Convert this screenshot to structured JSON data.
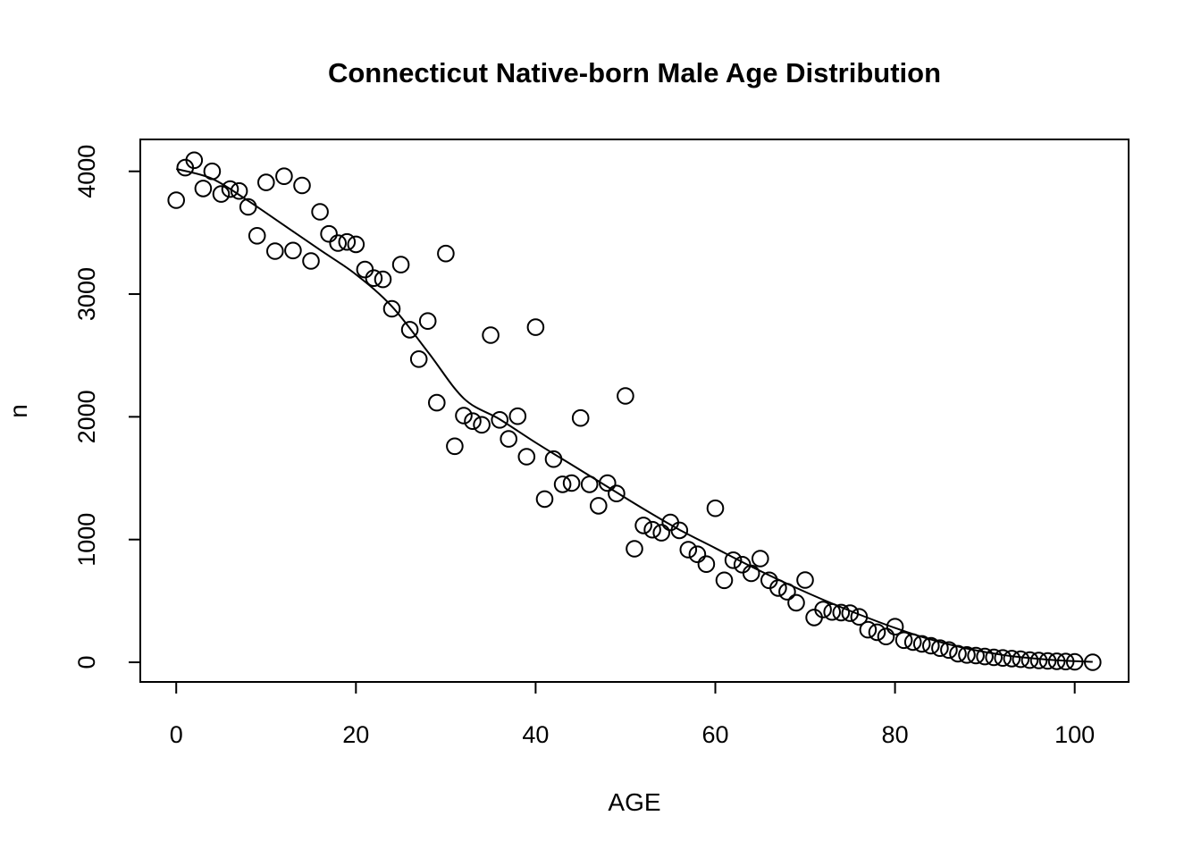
{
  "chart_data": {
    "type": "scatter",
    "title": "Connecticut Native-born Male Age Distribution",
    "xlabel": "AGE",
    "ylabel": "n",
    "marker": "open-circle",
    "smooth_line": "loess",
    "grid": false,
    "legend": "none",
    "colors": {
      "foreground": "#000000",
      "background": "#ffffff"
    },
    "x_ticks": [
      0,
      20,
      40,
      60,
      80,
      100
    ],
    "y_ticks": [
      0,
      1000,
      2000,
      3000,
      4000
    ],
    "xlim": [
      -4,
      106
    ],
    "ylim": [
      -160,
      4260
    ],
    "points": [
      [
        0,
        3765
      ],
      [
        1,
        4030
      ],
      [
        2,
        4090
      ],
      [
        3,
        3860
      ],
      [
        4,
        4000
      ],
      [
        5,
        3815
      ],
      [
        6,
        3855
      ],
      [
        7,
        3840
      ],
      [
        8,
        3710
      ],
      [
        9,
        3475
      ],
      [
        10,
        3910
      ],
      [
        11,
        3350
      ],
      [
        12,
        3960
      ],
      [
        13,
        3355
      ],
      [
        14,
        3885
      ],
      [
        15,
        3270
      ],
      [
        16,
        3670
      ],
      [
        17,
        3490
      ],
      [
        18,
        3415
      ],
      [
        19,
        3425
      ],
      [
        20,
        3405
      ],
      [
        21,
        3200
      ],
      [
        22,
        3130
      ],
      [
        23,
        3120
      ],
      [
        24,
        2880
      ],
      [
        25,
        3240
      ],
      [
        26,
        2710
      ],
      [
        27,
        2470
      ],
      [
        28,
        2780
      ],
      [
        29,
        2115
      ],
      [
        30,
        3330
      ],
      [
        31,
        1760
      ],
      [
        32,
        2010
      ],
      [
        33,
        1965
      ],
      [
        34,
        1935
      ],
      [
        35,
        2665
      ],
      [
        36,
        1975
      ],
      [
        37,
        1820
      ],
      [
        38,
        2005
      ],
      [
        39,
        1675
      ],
      [
        40,
        2730
      ],
      [
        41,
        1330
      ],
      [
        42,
        1655
      ],
      [
        43,
        1450
      ],
      [
        44,
        1460
      ],
      [
        45,
        1990
      ],
      [
        46,
        1450
      ],
      [
        47,
        1275
      ],
      [
        48,
        1460
      ],
      [
        49,
        1375
      ],
      [
        50,
        2170
      ],
      [
        51,
        925
      ],
      [
        52,
        1115
      ],
      [
        53,
        1080
      ],
      [
        54,
        1055
      ],
      [
        55,
        1140
      ],
      [
        56,
        1075
      ],
      [
        57,
        918
      ],
      [
        58,
        880
      ],
      [
        59,
        800
      ],
      [
        60,
        1255
      ],
      [
        61,
        668
      ],
      [
        62,
        832
      ],
      [
        63,
        795
      ],
      [
        64,
        725
      ],
      [
        65,
        845
      ],
      [
        66,
        668
      ],
      [
        67,
        605
      ],
      [
        68,
        575
      ],
      [
        69,
        485
      ],
      [
        70,
        670
      ],
      [
        71,
        365
      ],
      [
        72,
        430
      ],
      [
        73,
        410
      ],
      [
        74,
        405
      ],
      [
        75,
        400
      ],
      [
        76,
        370
      ],
      [
        77,
        265
      ],
      [
        78,
        245
      ],
      [
        79,
        210
      ],
      [
        80,
        290
      ],
      [
        81,
        180
      ],
      [
        82,
        165
      ],
      [
        83,
        150
      ],
      [
        84,
        135
      ],
      [
        85,
        115
      ],
      [
        86,
        100
      ],
      [
        87,
        70
      ],
      [
        88,
        60
      ],
      [
        89,
        55
      ],
      [
        90,
        47
      ],
      [
        91,
        40
      ],
      [
        92,
        35
      ],
      [
        93,
        30
      ],
      [
        94,
        25
      ],
      [
        95,
        18
      ],
      [
        96,
        15
      ],
      [
        97,
        11
      ],
      [
        98,
        8
      ],
      [
        99,
        6
      ],
      [
        100,
        4
      ],
      [
        102,
        0
      ]
    ],
    "trend": [
      [
        0,
        4020
      ],
      [
        4,
        3940
      ],
      [
        8,
        3760
      ],
      [
        12,
        3560
      ],
      [
        16,
        3360
      ],
      [
        20,
        3160
      ],
      [
        24,
        2900
      ],
      [
        28,
        2530
      ],
      [
        32,
        2150
      ],
      [
        36,
        1980
      ],
      [
        40,
        1790
      ],
      [
        44,
        1610
      ],
      [
        48,
        1430
      ],
      [
        52,
        1250
      ],
      [
        56,
        1080
      ],
      [
        60,
        930
      ],
      [
        64,
        780
      ],
      [
        68,
        640
      ],
      [
        72,
        510
      ],
      [
        76,
        390
      ],
      [
        80,
        280
      ],
      [
        84,
        185
      ],
      [
        88,
        112
      ],
      [
        92,
        60
      ],
      [
        94,
        42
      ],
      [
        97,
        22
      ],
      [
        100,
        9
      ],
      [
        102,
        4
      ]
    ]
  }
}
